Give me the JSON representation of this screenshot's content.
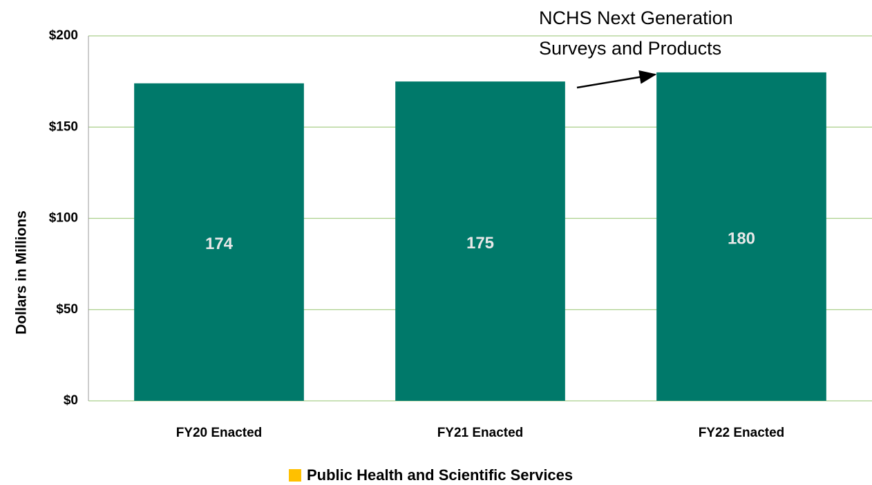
{
  "chart_data": {
    "type": "bar",
    "y_label": "Dollars in Millions",
    "categories": [
      "FY20 Enacted",
      "FY21 Enacted",
      "FY22 Enacted"
    ],
    "series": [
      {
        "name": "Public Health and Scientific Services",
        "color": "#00796a",
        "values": [
          174,
          175,
          180
        ]
      }
    ],
    "legend_color": "#ffc000",
    "annotation": [
      "NCHS Next Generation",
      "Surveys and Products"
    ],
    "ylim": [
      0,
      200
    ],
    "yticks": [
      {
        "value": 0,
        "label": "$0"
      },
      {
        "value": 50,
        "label": "$50"
      },
      {
        "value": 100,
        "label": "$100"
      },
      {
        "value": 150,
        "label": "$150"
      },
      {
        "value": 200,
        "label": "$200"
      }
    ],
    "grid": true
  }
}
